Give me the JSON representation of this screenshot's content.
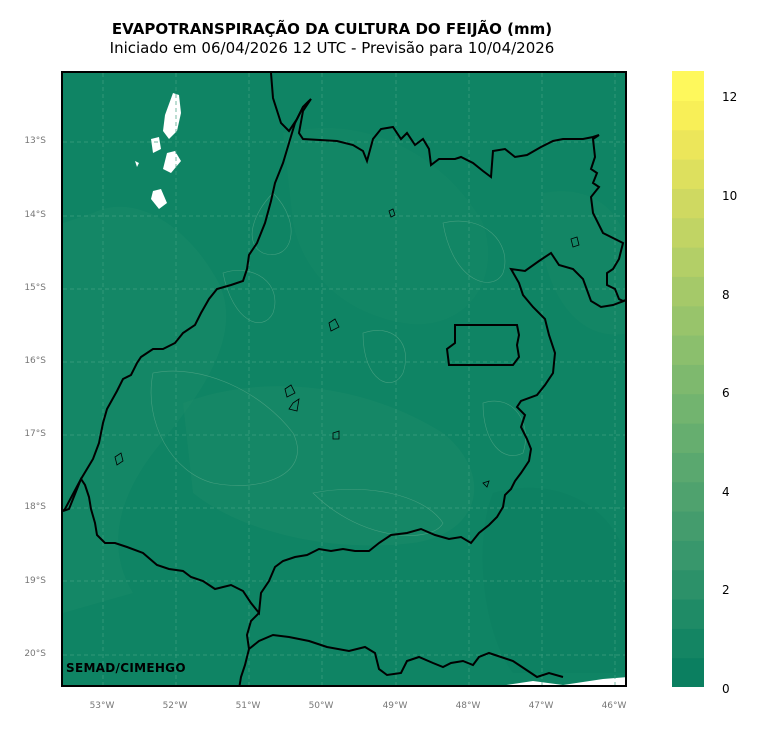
{
  "map": {
    "title": "EVAPOTRANSPIRAÇÃO DA CULTURA DO FEIJÃO (mm)",
    "subtitle": "Iniciado em 06/04/2026 12 UTC - Previsão para 10/04/2026",
    "credit": "SEMAD/CIMEHGO",
    "latitude_labels": [
      "13°S",
      "14°S",
      "15°S",
      "16°S",
      "17°S",
      "18°S",
      "19°S",
      "20°S"
    ],
    "longitude_labels": [
      "53°W",
      "52°W",
      "51°W",
      "50°W",
      "49°W",
      "48°W",
      "47°W",
      "46°W"
    ],
    "region": "Goiás / Distrito Federal",
    "background_color": "#0f8464",
    "border_color": "#000000"
  },
  "colorbar": {
    "unit": "mm",
    "min": 0,
    "max": 12.5,
    "tick_labels": [
      "0",
      "2",
      "4",
      "6",
      "8",
      "10",
      "12"
    ],
    "colors": [
      "#0b7f60",
      "#148563",
      "#1f8b66",
      "#2c9169",
      "#38976c",
      "#449c6d",
      "#4fa26e",
      "#5aa86f",
      "#66ae6f",
      "#72b46f",
      "#7eb96e",
      "#8bbf6d",
      "#98c46b",
      "#a5c969",
      "#b3cf67",
      "#c1d464",
      "#cfd961",
      "#dde05e",
      "#ece65a",
      "#f8ef57",
      "#fef85c"
    ]
  }
}
